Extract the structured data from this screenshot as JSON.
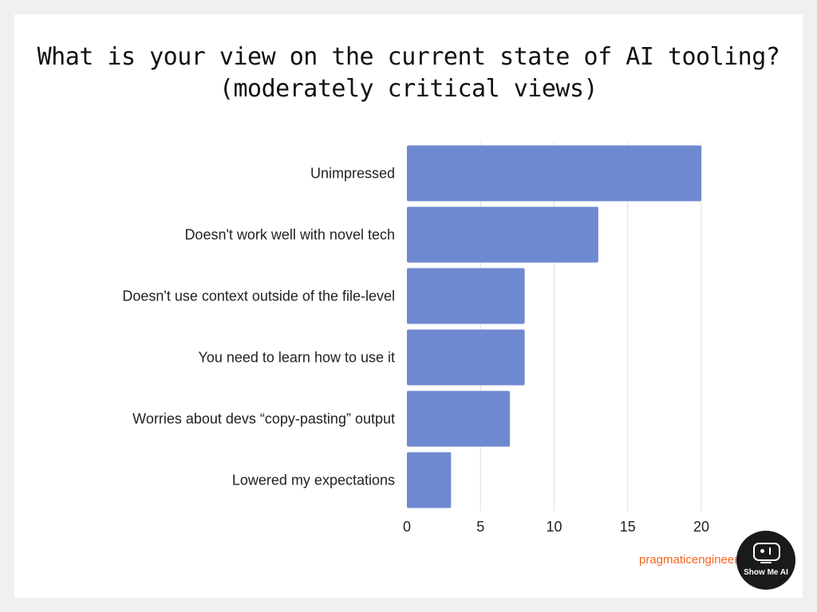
{
  "title_line1": "What is your view on the current state of AI tooling?",
  "title_line2": "(moderately critical views)",
  "watermark": "pragmaticengineer",
  "badge_text": "Show Me AI",
  "colors": {
    "bar": "#6f89d1",
    "grid": "#dddddd",
    "watermark": "#f26522",
    "badge": "#1a1a1a"
  },
  "chart_data": {
    "type": "bar",
    "orientation": "horizontal",
    "title": "What is your view on the current state of AI tooling? (moderately critical views)",
    "categories": [
      "Unimpressed",
      "Doesn't work well with novel tech",
      "Doesn't use context outside of the file-level",
      "You need to learn how to use it",
      "Worries about devs “copy-pasting” output",
      "Lowered my expectations"
    ],
    "values": [
      20,
      13,
      8,
      8,
      7,
      3
    ],
    "xlim": [
      0,
      20
    ],
    "xticks": [
      0,
      5,
      10,
      15,
      20
    ],
    "grid": true,
    "legend": "none"
  }
}
